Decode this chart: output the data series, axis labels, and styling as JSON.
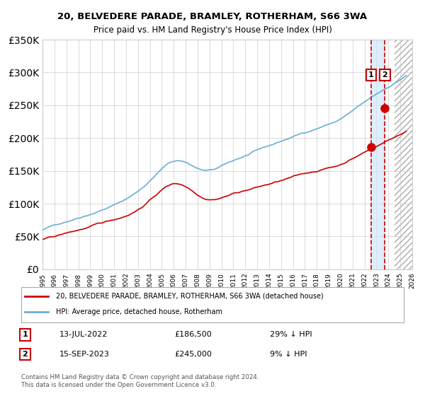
{
  "title": "20, BELVEDERE PARADE, BRAMLEY, ROTHERHAM, S66 3WA",
  "subtitle": "Price paid vs. HM Land Registry's House Price Index (HPI)",
  "legend_line1": "20, BELVEDERE PARADE, BRAMLEY, ROTHERHAM, S66 3WA (detached house)",
  "legend_line2": "HPI: Average price, detached house, Rotherham",
  "annotation1_label": "1",
  "annotation1_date": "13-JUL-2022",
  "annotation1_price": "£186,500",
  "annotation1_hpi": "29% ↓ HPI",
  "annotation2_label": "2",
  "annotation2_date": "15-SEP-2023",
  "annotation2_price": "£245,000",
  "annotation2_hpi": "9% ↓ HPI",
  "footer": "Contains HM Land Registry data © Crown copyright and database right 2024.\nThis data is licensed under the Open Government Licence v3.0.",
  "hpi_color": "#6aaed6",
  "price_color": "#cc0000",
  "marker_color": "#cc0000",
  "dashed_line_color": "#cc0000",
  "highlight_color": "#d0e8f8",
  "hatch_color": "#cccccc",
  "grid_color": "#cccccc",
  "annotation_box_color": "#cc0000",
  "ylim": [
    0,
    350000
  ],
  "yticks": [
    0,
    50000,
    100000,
    150000,
    200000,
    250000,
    300000,
    350000
  ],
  "sale1_year": 2022.54,
  "sale1_price": 186500,
  "sale2_year": 2023.71,
  "sale2_price": 245000,
  "xstart": 1995,
  "xend": 2026
}
